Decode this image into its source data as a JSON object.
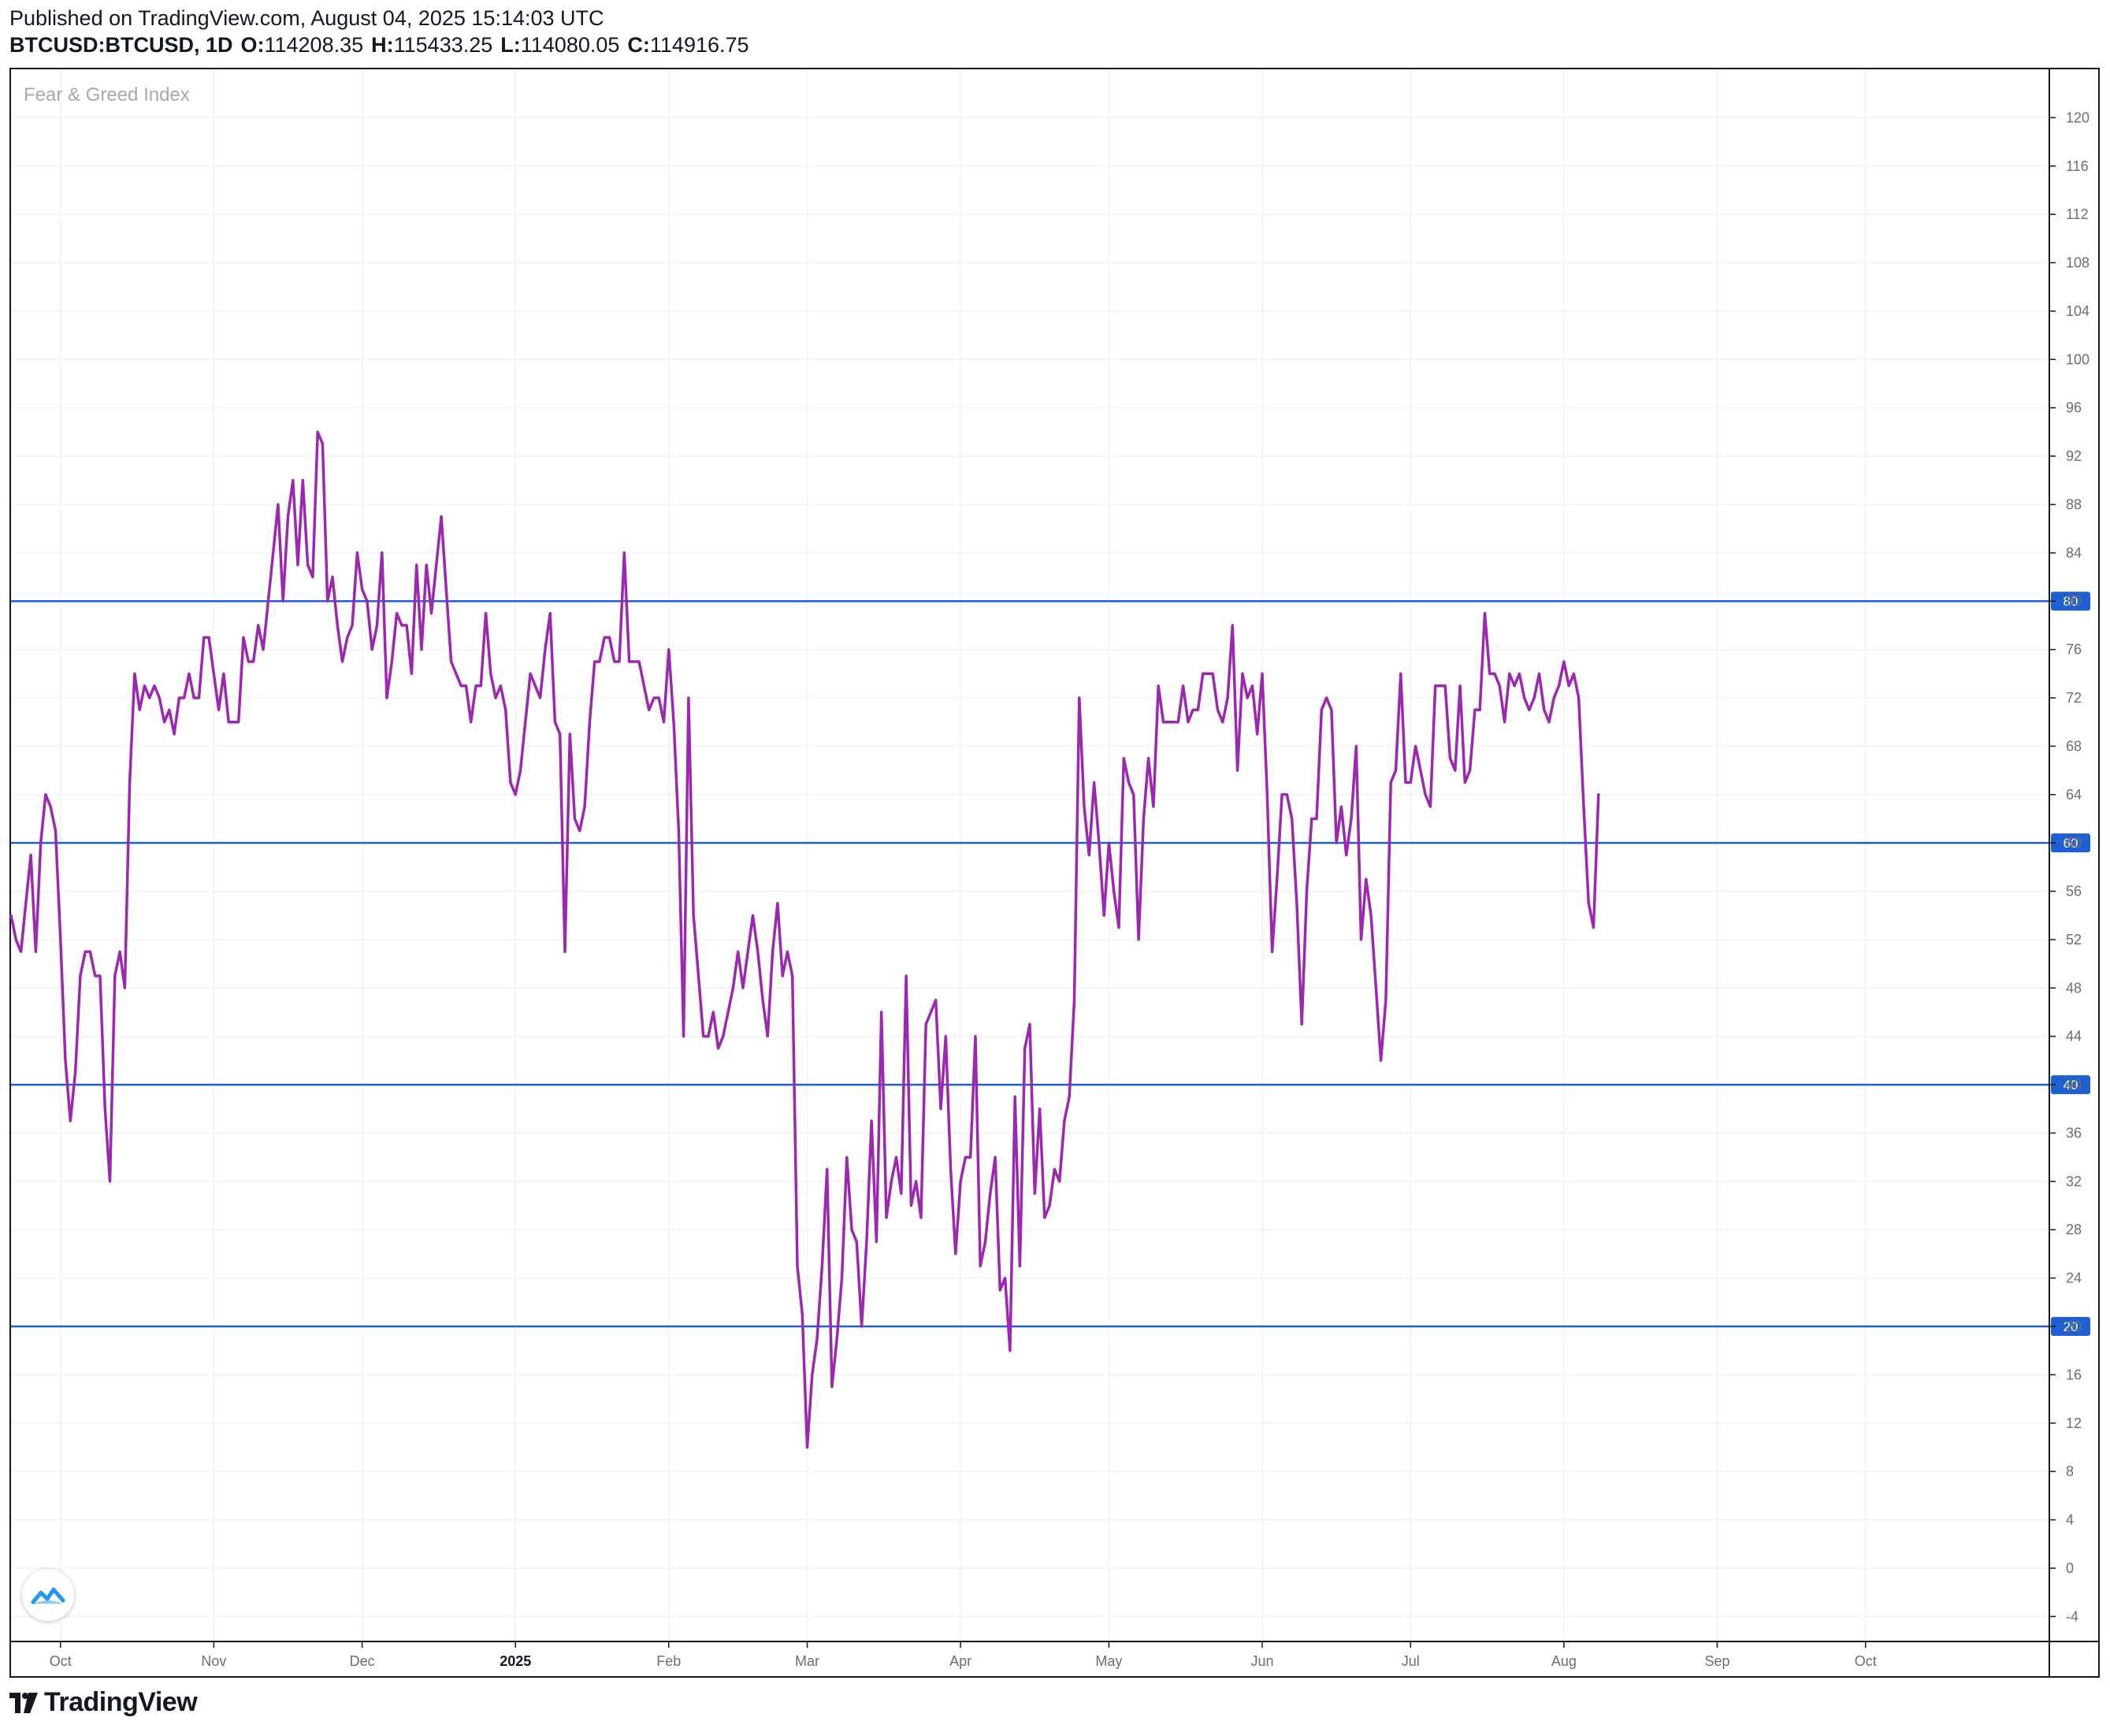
{
  "header": {
    "published": "Published on TradingView.com, August 04, 2025 15:14:03 UTC",
    "symbol": "BTCUSD:BTCUSD, 1D",
    "o_label": "O:",
    "o_value": "114208.35",
    "h_label": "H:",
    "h_value": "115433.25",
    "l_label": "L:",
    "l_value": "114080.05",
    "c_label": "C:",
    "c_value": "114916.75"
  },
  "footer": {
    "brand": "TradingView"
  },
  "colors": {
    "line": "#9c27b0",
    "levels": "#1e5fd1",
    "grid": "#f0f3fa"
  },
  "chart_data": {
    "type": "line",
    "title": "Fear & Greed Index",
    "ylim": [
      -6,
      124
    ],
    "yticks": [
      -4,
      0,
      4,
      8,
      12,
      16,
      20,
      24,
      28,
      32,
      36,
      40,
      44,
      48,
      52,
      56,
      60,
      64,
      68,
      72,
      76,
      80,
      84,
      88,
      92,
      96,
      100,
      104,
      108,
      112,
      116,
      120
    ],
    "xlim": [
      "2024-09-21",
      "2025-11-07"
    ],
    "xticks": [
      {
        "date": "2024-10-01",
        "label": "Oct",
        "bold": false
      },
      {
        "date": "2024-11-01",
        "label": "Nov",
        "bold": false
      },
      {
        "date": "2024-12-01",
        "label": "Dec",
        "bold": false
      },
      {
        "date": "2025-01-01",
        "label": "2025",
        "bold": true
      },
      {
        "date": "2025-02-01",
        "label": "Feb",
        "bold": false
      },
      {
        "date": "2025-03-01",
        "label": "Mar",
        "bold": false
      },
      {
        "date": "2025-04-01",
        "label": "Apr",
        "bold": false
      },
      {
        "date": "2025-05-01",
        "label": "May",
        "bold": false
      },
      {
        "date": "2025-06-01",
        "label": "Jun",
        "bold": false
      },
      {
        "date": "2025-07-01",
        "label": "Jul",
        "bold": false
      },
      {
        "date": "2025-08-01",
        "label": "Aug",
        "bold": false
      },
      {
        "date": "2025-09-01",
        "label": "Sep",
        "bold": false
      },
      {
        "date": "2025-10-01",
        "label": "Oct",
        "bold": false
      }
    ],
    "levels": [
      80,
      60,
      40,
      20
    ],
    "grid": true,
    "series": [
      {
        "start_date": "2024-09-21",
        "values": [
          54,
          52,
          51,
          55,
          59,
          51,
          60,
          64,
          63,
          61,
          52,
          42,
          37,
          41,
          49,
          51,
          51,
          49,
          49,
          38,
          32,
          49,
          51,
          48,
          65,
          74,
          71,
          73,
          72,
          73,
          72,
          70,
          71,
          69,
          72,
          72,
          74,
          72,
          72,
          77,
          77,
          74,
          71,
          74,
          70,
          70,
          70,
          77,
          75,
          75,
          78,
          76,
          80,
          84,
          88,
          80,
          87,
          90,
          83,
          90,
          83,
          82,
          94,
          93,
          80,
          82,
          78,
          75,
          77,
          78,
          84,
          81,
          80,
          76,
          78,
          84,
          72,
          75,
          79,
          78,
          78,
          74,
          83,
          76,
          83,
          79,
          83,
          87,
          81,
          75,
          74,
          73,
          73,
          70,
          73,
          73,
          79,
          74,
          72,
          73,
          71,
          65,
          64,
          66,
          70,
          74,
          73,
          72,
          76,
          79,
          70,
          69,
          51,
          69,
          62,
          61,
          63,
          70,
          75,
          75,
          77,
          77,
          75,
          75,
          84,
          75,
          75,
          75,
          73,
          71,
          72,
          72,
          70,
          76,
          70,
          61,
          44,
          72,
          54,
          49,
          44,
          44,
          46,
          43,
          44,
          46,
          48,
          51,
          48,
          51,
          54,
          51,
          47,
          44,
          51,
          55,
          49,
          51,
          49,
          25,
          21,
          10,
          16,
          19,
          25,
          33,
          15,
          19,
          24,
          34,
          28,
          27,
          20,
          27,
          37,
          27,
          46,
          29,
          32,
          34,
          31,
          49,
          30,
          32,
          29,
          45,
          46,
          47,
          38,
          44,
          33,
          26,
          32,
          34,
          34,
          44,
          25,
          27,
          31,
          34,
          23,
          24,
          18,
          39,
          25,
          43,
          45,
          31,
          38,
          29,
          30,
          33,
          32,
          37,
          39,
          47,
          72,
          63,
          59,
          65,
          60,
          54,
          60,
          56,
          53,
          67,
          65,
          64,
          52,
          62,
          67,
          63,
          73,
          70,
          70,
          70,
          70,
          73,
          70,
          71,
          71,
          74,
          74,
          74,
          71,
          70,
          72,
          78,
          66,
          74,
          72,
          73,
          69,
          74,
          64,
          51,
          57,
          64,
          64,
          62,
          55,
          45,
          56,
          62,
          62,
          71,
          72,
          71,
          60,
          63,
          59,
          62,
          68,
          52,
          57,
          54,
          48,
          42,
          47,
          65,
          66,
          74,
          65,
          65,
          68,
          66,
          64,
          63,
          73,
          73,
          73,
          67,
          66,
          73,
          65,
          66,
          71,
          71,
          79,
          74,
          74,
          73,
          70,
          74,
          73,
          74,
          72,
          71,
          72,
          74,
          71,
          70,
          72,
          73,
          75,
          73,
          74,
          72,
          63,
          55,
          53,
          64
        ]
      }
    ]
  }
}
